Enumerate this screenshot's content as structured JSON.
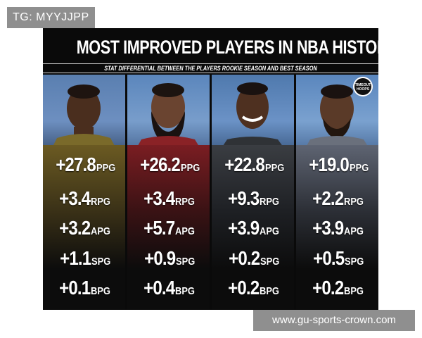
{
  "watermark": {
    "tg_label": "TG: MYYJJPP",
    "url_label": "www.gu-sports-crown.com"
  },
  "poster": {
    "title": "MOST IMPROVED PLAYERS IN NBA HISTORY",
    "subtitle": "STAT DIFFERENTIAL BETWEEN THE PLAYERS ROOKIE SEASON AND BEST SEASON",
    "logo": {
      "icon": "timeout-hoops-logo",
      "text_line1": "TIMEOUT",
      "text_line2": "HOOPS"
    },
    "players": [
      {
        "stats": [
          {
            "value": "+27.8",
            "unit": "PPG"
          },
          {
            "value": "+3.4",
            "unit": "RPG"
          },
          {
            "value": "+3.2",
            "unit": "APG"
          },
          {
            "value": "+1.1",
            "unit": "SPG"
          },
          {
            "value": "+0.1",
            "unit": "BPG"
          }
        ]
      },
      {
        "stats": [
          {
            "value": "+26.2",
            "unit": "PPG"
          },
          {
            "value": "+3.4",
            "unit": "RPG"
          },
          {
            "value": "+5.7",
            "unit": "APG"
          },
          {
            "value": "+0.9",
            "unit": "SPG"
          },
          {
            "value": "+0.4",
            "unit": "BPG"
          }
        ]
      },
      {
        "stats": [
          {
            "value": "+22.8",
            "unit": "PPG"
          },
          {
            "value": "+9.3",
            "unit": "RPG"
          },
          {
            "value": "+3.9",
            "unit": "APG"
          },
          {
            "value": "+0.2",
            "unit": "SPG"
          },
          {
            "value": "+0.2",
            "unit": "BPG"
          }
        ]
      },
      {
        "stats": [
          {
            "value": "+19.0",
            "unit": "PPG"
          },
          {
            "value": "+2.2",
            "unit": "RPG"
          },
          {
            "value": "+3.9",
            "unit": "APG"
          },
          {
            "value": "+0.5",
            "unit": "SPG"
          },
          {
            "value": "+0.2",
            "unit": "BPG"
          }
        ]
      }
    ],
    "colors": {
      "background": "#0a0a0a",
      "text": "#ffffff",
      "watermark_bg": "#8f8f8f"
    }
  }
}
